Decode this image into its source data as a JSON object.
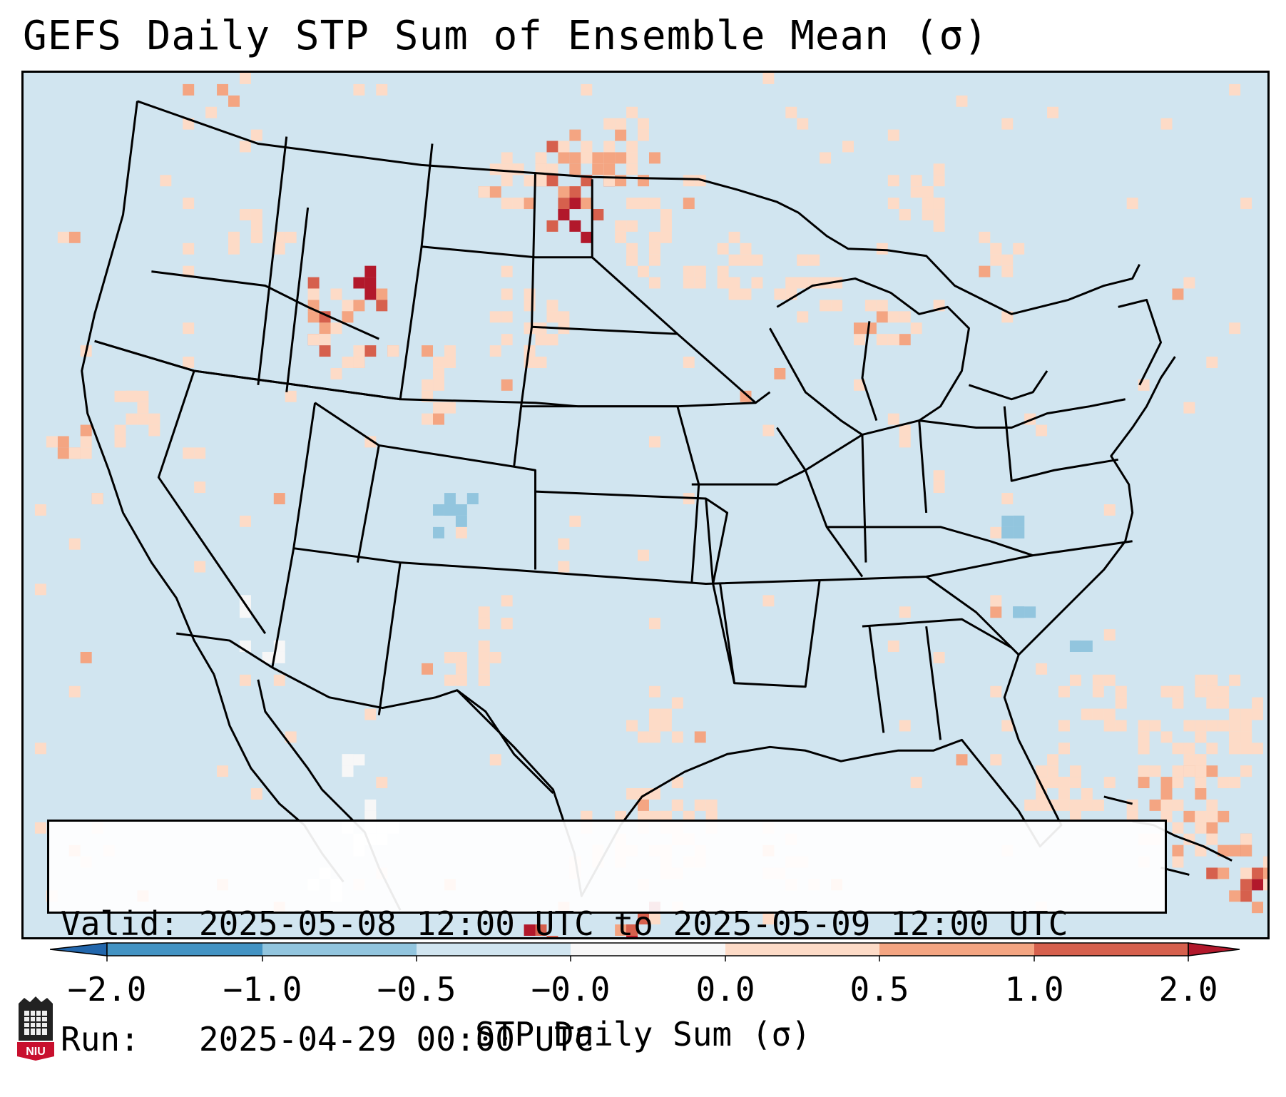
{
  "title": "GEFS Daily STP Sum of Ensemble Mean (σ)",
  "info": {
    "valid_label": "Valid:",
    "valid_value": "2025-05-08 12:00 UTC to 2025-05-09 12:00 UTC",
    "run_label": "Run:",
    "run_value": "2025-04-29 00:00 UTC"
  },
  "colorbar": {
    "label": "STP Daily Sum (σ)",
    "ticks": [
      "−2.0",
      "−1.0",
      "−0.5",
      "−0.0",
      "0.0",
      "0.5",
      "1.0",
      "2.0"
    ],
    "colors": [
      "#4393c3",
      "#92c5de",
      "#d1e5f0",
      "#f7f7f7",
      "#fddbc7",
      "#f4a582",
      "#d6604d"
    ],
    "extend_low_color": "#2166ac",
    "extend_high_color": "#b2182b"
  },
  "map": {
    "background_color": "#d1e5f0",
    "palette": {
      "light": "#fddbc7",
      "medium": "#f4a582",
      "strong": "#d6604d",
      "extreme": "#b2182b",
      "neg_light": "#92c5de",
      "neutral": "#f7f7f7"
    }
  },
  "logo": {
    "text": "NIU",
    "color": "#c8102e"
  }
}
